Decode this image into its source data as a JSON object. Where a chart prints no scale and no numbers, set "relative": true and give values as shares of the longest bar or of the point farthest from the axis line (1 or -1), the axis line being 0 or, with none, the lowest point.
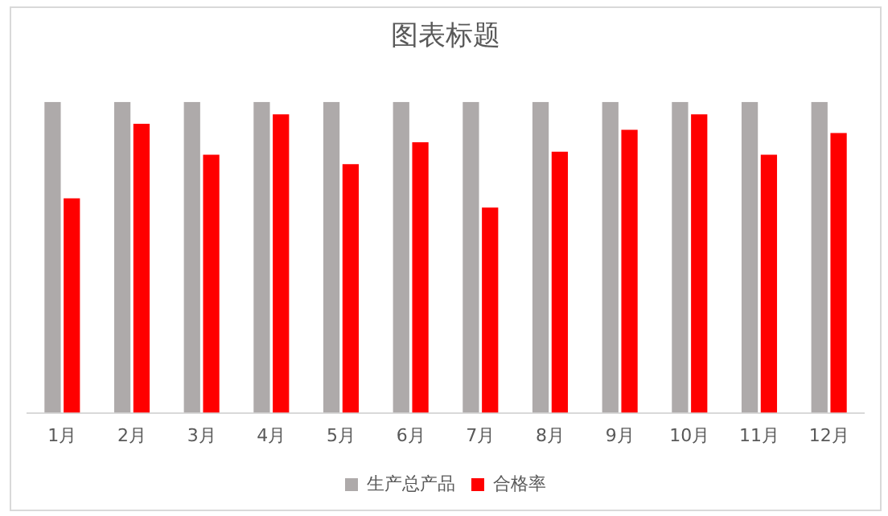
{
  "chart_data": {
    "type": "bar",
    "title": "图表标题",
    "relative": true,
    "categories": [
      "1月",
      "2月",
      "3月",
      "4月",
      "5月",
      "6月",
      "7月",
      "8月",
      "9月",
      "10月",
      "11月",
      "12月"
    ],
    "series": [
      {
        "name": "生产总产品",
        "color": "#aeaaaa",
        "values": [
          1,
          1,
          1,
          1,
          1,
          1,
          1,
          1,
          1,
          1,
          1,
          1
        ]
      },
      {
        "name": "合格率",
        "color": "#ff0000",
        "values": [
          0.69,
          0.93,
          0.83,
          0.96,
          0.8,
          0.87,
          0.66,
          0.84,
          0.91,
          0.96,
          0.83,
          0.9
        ]
      }
    ],
    "legend": "bottom",
    "grid": false
  }
}
